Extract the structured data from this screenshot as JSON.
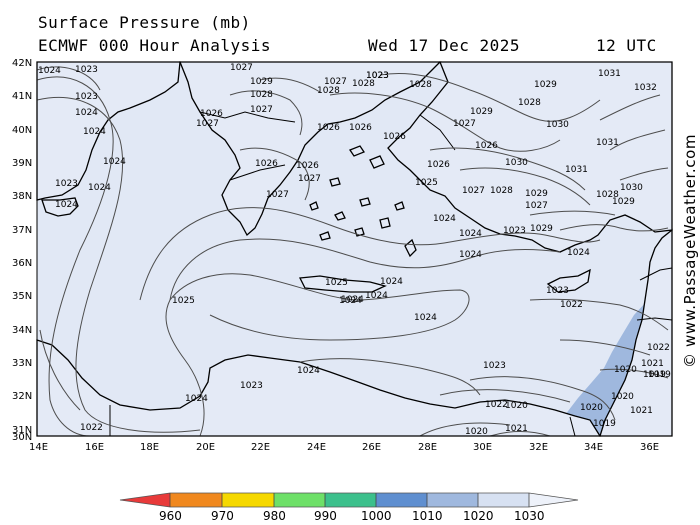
{
  "header": {
    "title": "Surface Pressure (mb)",
    "subtitle": "ECMWF 000 Hour Analysis",
    "datetime": "Wed 17 Dec 2025",
    "utc": "12 UTC"
  },
  "axes": {
    "lat_labels": [
      "42N",
      "41N",
      "40N",
      "39N",
      "38N",
      "37N",
      "36N",
      "35N",
      "34N",
      "33N",
      "32N",
      "31N",
      "30N"
    ],
    "lon_labels": [
      "14E",
      "16E",
      "18E",
      "20E",
      "22E",
      "24E",
      "26E",
      "28E",
      "30E",
      "32E",
      "34E",
      "36E"
    ]
  },
  "credit": "© www.PassageWeather.com",
  "colors": {
    "sea": "#e1e8f5",
    "land": "#e4eaf6",
    "coast": "#000000",
    "isobar": "#4d4d4d",
    "low_pressure_fill": "#9fb8de"
  },
  "isobar_labels": [
    {
      "id": "a1",
      "text": "1024"
    },
    {
      "id": "a2",
      "text": "1023"
    },
    {
      "id": "a3",
      "text": "1023"
    },
    {
      "id": "a4",
      "text": "1024"
    },
    {
      "id": "a5",
      "text": "1024"
    },
    {
      "id": "a6",
      "text": "1024"
    },
    {
      "id": "a7",
      "text": "1023"
    },
    {
      "id": "a8",
      "text": "1024"
    },
    {
      "id": "a9",
      "text": "1024"
    },
    {
      "id": "b1",
      "text": "1027"
    },
    {
      "id": "b2",
      "text": "1029"
    },
    {
      "id": "b3",
      "text": "1028"
    },
    {
      "id": "b4",
      "text": "1027"
    },
    {
      "id": "b5",
      "text": "1026"
    },
    {
      "id": "b6",
      "text": "1027"
    },
    {
      "id": "b7",
      "text": "1023"
    },
    {
      "id": "b8",
      "text": "1028"
    },
    {
      "id": "b9",
      "text": "1026"
    },
    {
      "id": "c1",
      "text": "1027"
    },
    {
      "id": "c2",
      "text": "1028"
    },
    {
      "id": "c3",
      "text": "1023"
    },
    {
      "id": "c4",
      "text": "1026"
    },
    {
      "id": "c5",
      "text": "1026"
    },
    {
      "id": "c6",
      "text": "1027"
    },
    {
      "id": "c7",
      "text": "1027"
    },
    {
      "id": "c8",
      "text": "1026"
    },
    {
      "id": "c9",
      "text": "1026"
    },
    {
      "id": "d1",
      "text": "1025"
    },
    {
      "id": "d2",
      "text": "1024"
    },
    {
      "id": "d3",
      "text": "1028"
    },
    {
      "id": "d4",
      "text": "1029"
    },
    {
      "id": "d5",
      "text": "1027"
    },
    {
      "id": "d6",
      "text": "1028"
    },
    {
      "id": "d7",
      "text": "1029"
    },
    {
      "id": "d8",
      "text": "1030"
    },
    {
      "id": "d9",
      "text": "1026"
    },
    {
      "id": "e1",
      "text": "1026"
    },
    {
      "id": "e2",
      "text": "1030"
    },
    {
      "id": "e3",
      "text": "1027"
    },
    {
      "id": "e4",
      "text": "1028"
    },
    {
      "id": "e5",
      "text": "1029"
    },
    {
      "id": "e6",
      "text": "1027"
    },
    {
      "id": "e7",
      "text": "1024"
    },
    {
      "id": "e8",
      "text": "1024"
    },
    {
      "id": "e9",
      "text": "1023"
    },
    {
      "id": "f1",
      "text": "1029"
    },
    {
      "id": "f2",
      "text": "1024"
    },
    {
      "id": "f3",
      "text": "1025"
    },
    {
      "id": "f4",
      "text": "1024"
    },
    {
      "id": "f5",
      "text": "1024"
    },
    {
      "id": "f6",
      "text": "1024"
    },
    {
      "id": "f7",
      "text": "1025"
    },
    {
      "id": "f8",
      "text": "1024"
    },
    {
      "id": "f9",
      "text": "1023"
    },
    {
      "id": "g1",
      "text": "1022"
    },
    {
      "id": "g2",
      "text": "1023"
    },
    {
      "id": "g3",
      "text": "1024"
    },
    {
      "id": "g4",
      "text": "1023"
    },
    {
      "id": "g5",
      "text": "1024"
    },
    {
      "id": "g6",
      "text": "1022"
    },
    {
      "id": "g7",
      "text": "1022"
    },
    {
      "id": "g8",
      "text": "1021"
    },
    {
      "id": "g9",
      "text": "1020"
    },
    {
      "id": "h1",
      "text": "1020"
    },
    {
      "id": "h2",
      "text": "1020"
    },
    {
      "id": "h3",
      "text": "1019"
    },
    {
      "id": "h4",
      "text": "1020"
    },
    {
      "id": "h5",
      "text": "1021"
    },
    {
      "id": "h6",
      "text": "1019"
    },
    {
      "id": "h7",
      "text": "1031"
    },
    {
      "id": "h8",
      "text": "1032"
    },
    {
      "id": "h9",
      "text": "1031"
    },
    {
      "id": "i1",
      "text": "1031"
    },
    {
      "id": "i2",
      "text": "1030"
    },
    {
      "id": "i3",
      "text": "1029"
    },
    {
      "id": "i4",
      "text": "1028"
    },
    {
      "id": "i5",
      "text": "1022"
    },
    {
      "id": "i6",
      "text": "1021"
    },
    {
      "id": "i7",
      "text": "1020"
    },
    {
      "id": "i8",
      "text": "1019"
    },
    {
      "id": "i9",
      "text": "1024"
    }
  ],
  "colorbar": {
    "labels": [
      "960",
      "970",
      "980",
      "990",
      "1000",
      "1010",
      "1020",
      "1030"
    ],
    "colors": [
      "#e83a3a",
      "#f0881e",
      "#f5d800",
      "#6ee068",
      "#3cc08c",
      "#5f8fd0",
      "#9fb8de",
      "#d7e1f2"
    ]
  }
}
